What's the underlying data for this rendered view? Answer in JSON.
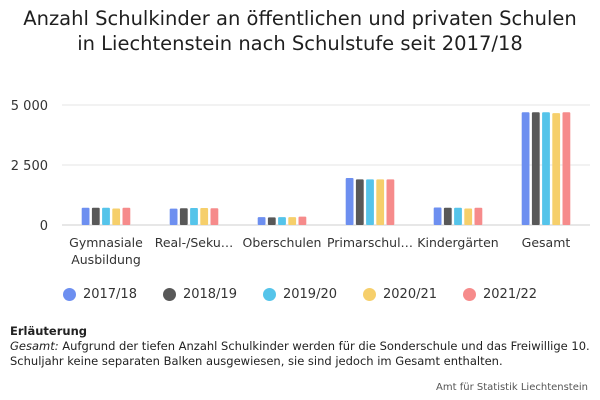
{
  "chart_data": {
    "type": "bar",
    "title": "Anzahl Schulkinder an öffentlichen und privaten Schulen in Liechtenstein nach Schulstufe seit 2017/18",
    "categories": [
      {
        "label_lines": [
          "Gymnasiale",
          "Ausbildung"
        ]
      },
      {
        "label_lines": [
          "Real-/Seku…"
        ]
      },
      {
        "label_lines": [
          "Oberschulen"
        ]
      },
      {
        "label_lines": [
          "Primarschul…"
        ]
      },
      {
        "label_lines": [
          "Kindergärten"
        ]
      },
      {
        "label_lines": [
          "Gesamt"
        ]
      }
    ],
    "series": [
      {
        "name": "2017/18",
        "color": "#6d8ff0",
        "values": [
          720,
          680,
          330,
          1960,
          730,
          4700
        ]
      },
      {
        "name": "2018/19",
        "color": "#585858",
        "values": [
          720,
          700,
          320,
          1900,
          720,
          4700
        ]
      },
      {
        "name": "2019/20",
        "color": "#55c4ea",
        "values": [
          720,
          710,
          330,
          1900,
          720,
          4700
        ]
      },
      {
        "name": "2020/21",
        "color": "#f6cf6b",
        "values": [
          690,
          710,
          330,
          1900,
          690,
          4660
        ]
      },
      {
        "name": "2021/22",
        "color": "#f68b8b",
        "values": [
          720,
          700,
          350,
          1900,
          720,
          4700
        ]
      }
    ],
    "yticks": [
      {
        "value": 0,
        "label": "0"
      },
      {
        "value": 2500,
        "label": "2 500"
      },
      {
        "value": 5000,
        "label": "5 000"
      }
    ],
    "ylim": [
      0,
      5000
    ],
    "grid": true,
    "legend_position": "bottom"
  },
  "note": {
    "heading": "Erläuterung",
    "term": "Gesamt:",
    "text": " Aufgrund der tiefen Anzahl Schulkinder werden für die Sonderschule und das Freiwillige 10. Schuljahr keine separaten Balken ausgewiesen, sie sind jedoch im Gesamt enthalten."
  },
  "source": "Amt für Statistik Liechtenstein"
}
